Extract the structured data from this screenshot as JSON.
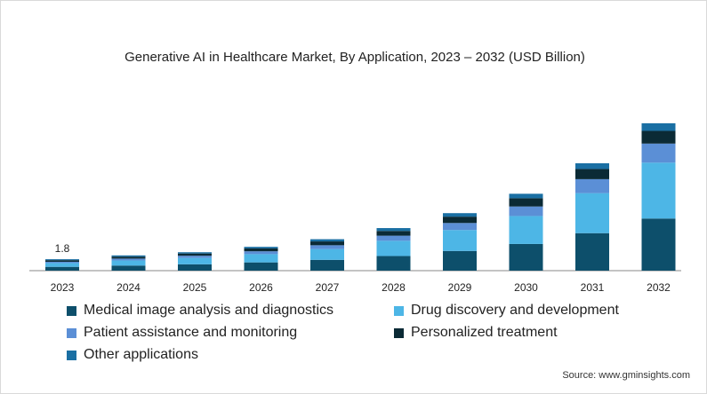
{
  "chart_data": {
    "type": "bar",
    "stacked": true,
    "title": "Generative AI in Healthcare Market, By Application, 2023 – 2032 (USD Billion)",
    "categories": [
      "2023",
      "2024",
      "2025",
      "2026",
      "2027",
      "2028",
      "2029",
      "2030",
      "2031",
      "2032"
    ],
    "series": [
      {
        "name": "Medical image analysis and diagnostics",
        "color": "#0d4f6b",
        "values": [
          0.6,
          0.8,
          1.0,
          1.3,
          1.7,
          2.3,
          3.1,
          4.2,
          5.9,
          8.2
        ]
      },
      {
        "name": "Drug discovery and development",
        "color": "#4db6e6",
        "values": [
          0.6,
          0.8,
          1.0,
          1.3,
          1.7,
          2.4,
          3.3,
          4.4,
          6.3,
          8.8
        ]
      },
      {
        "name": "Patient assistance and monitoring",
        "color": "#5b8fd6",
        "values": [
          0.2,
          0.3,
          0.35,
          0.45,
          0.6,
          0.8,
          1.1,
          1.5,
          2.2,
          3.0
        ]
      },
      {
        "name": "Personalized treatment",
        "color": "#0b2a35",
        "values": [
          0.25,
          0.3,
          0.35,
          0.45,
          0.6,
          0.75,
          1.0,
          1.3,
          1.6,
          2.0
        ]
      },
      {
        "name": "Other applications",
        "color": "#1a6fa3",
        "values": [
          0.15,
          0.2,
          0.2,
          0.25,
          0.35,
          0.45,
          0.55,
          0.7,
          0.9,
          1.2
        ]
      }
    ],
    "data_labels": [
      {
        "category": "2023",
        "text": "1.8"
      }
    ],
    "ylim": [
      0,
      25
    ],
    "grid": false,
    "legend_position": "bottom"
  },
  "source_text": "Source: www.gminsights.com"
}
